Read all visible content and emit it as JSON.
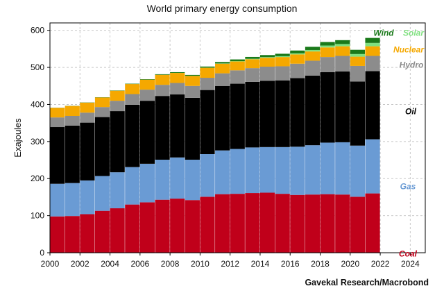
{
  "title": "World primary energy consumption",
  "source": "Gavekal Research/Macrobond",
  "chart_data": {
    "type": "bar",
    "stacked": true,
    "title": "World primary energy consumption",
    "xlabel": "",
    "ylabel": "Exajoules",
    "xlim": [
      2000,
      2025
    ],
    "ylim": [
      0,
      620
    ],
    "grid": true,
    "x_ticks": [
      "2000",
      "2002",
      "2004",
      "2006",
      "2008",
      "2010",
      "2012",
      "2014",
      "2016",
      "2018",
      "2020",
      "2022",
      "2024"
    ],
    "y_ticks": [
      "0",
      "100",
      "200",
      "300",
      "400",
      "500",
      "600"
    ],
    "categories": [
      2000,
      2001,
      2002,
      2003,
      2004,
      2005,
      2006,
      2007,
      2008,
      2009,
      2010,
      2011,
      2012,
      2013,
      2014,
      2015,
      2016,
      2017,
      2018,
      2019,
      2020,
      2021
    ],
    "series": [
      {
        "name": "Coal",
        "color": "#c0001a",
        "values": [
          98,
          99,
          104,
          113,
          120,
          130,
          136,
          143,
          146,
          142,
          151,
          158,
          159,
          161,
          162,
          159,
          156,
          157,
          158,
          157,
          151,
          160
        ]
      },
      {
        "name": "Gas",
        "color": "#6a9bd4",
        "values": [
          88,
          89,
          91,
          94,
          97,
          101,
          104,
          108,
          111,
          109,
          115,
          118,
          121,
          123,
          123,
          126,
          130,
          133,
          139,
          141,
          138,
          146
        ]
      },
      {
        "name": "Oil",
        "color": "#000000",
        "values": [
          153,
          155,
          156,
          159,
          165,
          168,
          170,
          172,
          170,
          167,
          173,
          174,
          176,
          177,
          179,
          180,
          185,
          188,
          190,
          191,
          173,
          184
        ]
      },
      {
        "name": "Hydro",
        "color": "#8c8c8c",
        "values": [
          26,
          26,
          27,
          27,
          28,
          29,
          30,
          30,
          31,
          32,
          33,
          34,
          36,
          37,
          38,
          38,
          39,
          40,
          41,
          42,
          42,
          41
        ]
      },
      {
        "name": "Nuclear",
        "color": "#f5a800",
        "values": [
          26,
          27,
          27,
          26,
          27,
          27,
          27,
          27,
          27,
          27,
          27,
          26,
          24,
          24,
          24,
          25,
          25,
          25,
          26,
          26,
          25,
          26
        ]
      },
      {
        "name": "Solar",
        "color": "#7fe07f",
        "values": [
          0,
          0,
          0,
          0,
          0,
          0,
          0,
          0,
          0.1,
          0.2,
          0.3,
          0.6,
          1,
          1.3,
          1.8,
          2.3,
          3,
          4,
          5,
          6,
          7,
          9
        ]
      },
      {
        "name": "Wind",
        "color": "#1a7a1a",
        "values": [
          0.3,
          0.4,
          0.5,
          0.6,
          0.8,
          1,
          1.2,
          1.6,
          2,
          2.5,
          3,
          4,
          4.5,
          5,
          5.5,
          6.5,
          7.5,
          8.5,
          9.5,
          10.5,
          11.5,
          13.5
        ]
      }
    ],
    "labels": [
      "Wind",
      "Solar",
      "Nuclear",
      "Hydro",
      "Oil",
      "Gas",
      "Coal"
    ]
  }
}
